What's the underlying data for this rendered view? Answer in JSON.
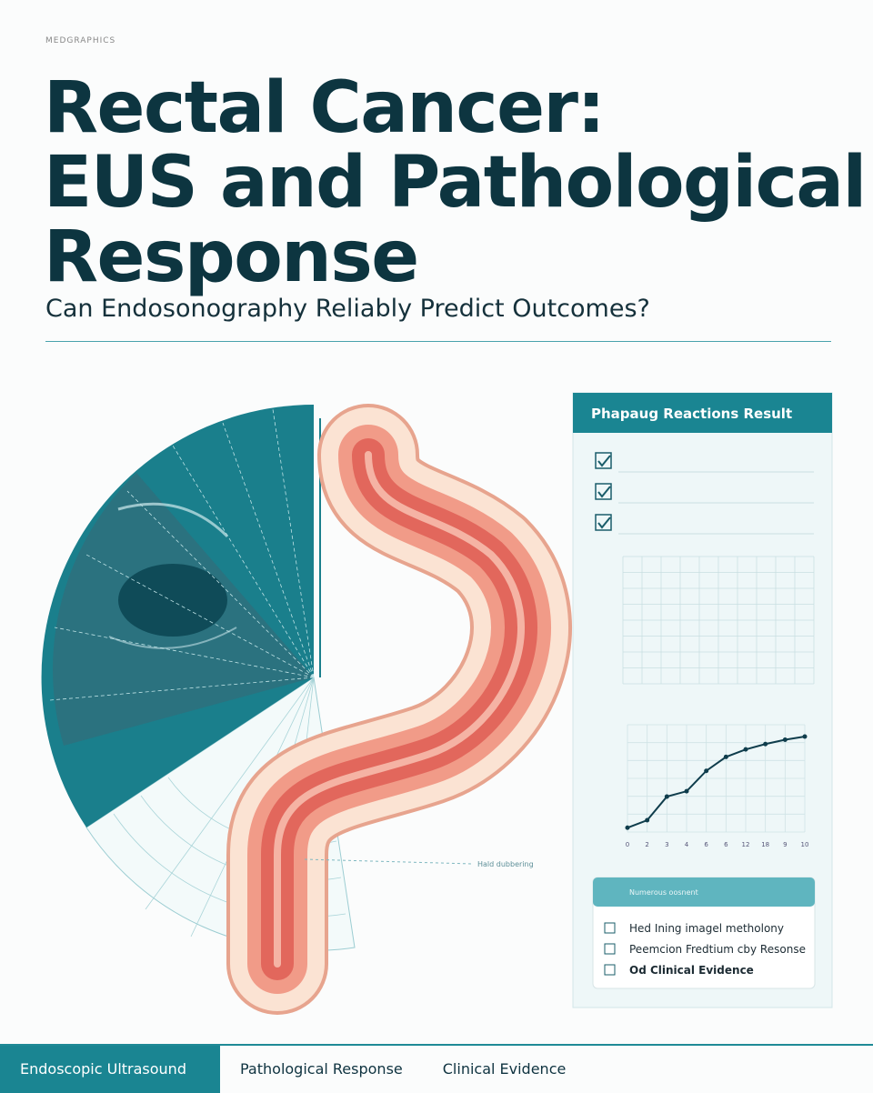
{
  "header": {
    "kicker": "MEDGRAPHICS",
    "title_lines": [
      "Rectal Cancer:",
      "EUS and Pathological",
      "Response"
    ],
    "subtitle": "Can Endosonography Reliably Predict Outcomes?"
  },
  "illustration": {
    "annotation": "Hald dubbering"
  },
  "panel": {
    "title": "Phapaug Reactions Result",
    "chart_data": {
      "type": "line",
      "categories": [
        "0",
        "2",
        "3",
        "4",
        "6",
        "6",
        "12",
        "18",
        "9",
        "10"
      ],
      "values": [
        4,
        11,
        33,
        38,
        57,
        70,
        77,
        82,
        86,
        89
      ],
      "ylim": [
        0,
        100
      ],
      "color": "#0f3d4c",
      "grid": true
    },
    "legend": {
      "title": "Numerous oosnent",
      "items": [
        "Hed Ining imagel metholony",
        "Peemcion Fredtium cby Resonse",
        "Od Clinical Evidence"
      ]
    }
  },
  "tabs": [
    "Endoscopic Ultrasound",
    "Pathological Response",
    "Clinical Evidence"
  ]
}
